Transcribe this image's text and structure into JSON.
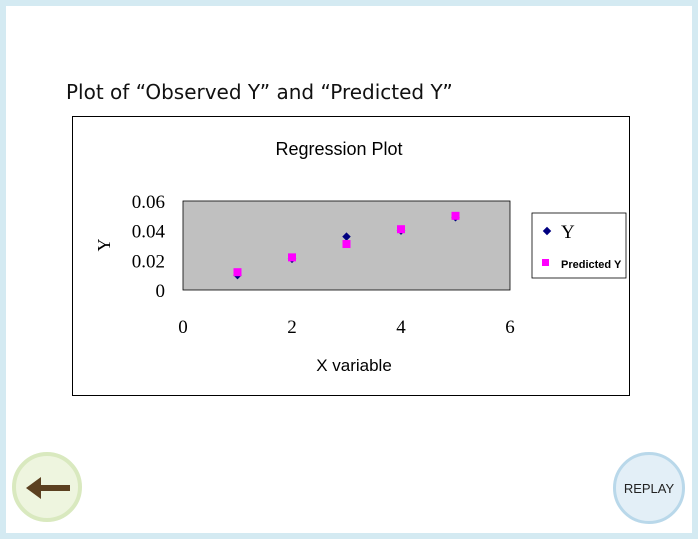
{
  "heading": "Plot of “Observed Y” and “Predicted Y”",
  "buttons": {
    "back_icon": "left-arrow-icon",
    "replay_label": "REPLAY"
  },
  "colors": {
    "plot_area": "#c0c0c0",
    "observed": "#000080",
    "predicted": "#ff00ff",
    "page_border": "#d4eaf2"
  },
  "chart_data": {
    "type": "scatter",
    "title": "Regression Plot",
    "xlabel": "X variable",
    "ylabel": "Y",
    "xlim": [
      0,
      6
    ],
    "ylim": [
      0,
      0.06
    ],
    "x_ticks": [
      "0",
      "2",
      "4",
      "6"
    ],
    "y_ticks": [
      "0",
      "0.02",
      "0.04",
      "0.06"
    ],
    "grid": false,
    "legend_position": "right",
    "series": [
      {
        "name": "Y",
        "marker": "diamond",
        "x": [
          1,
          2,
          3,
          4,
          5
        ],
        "y": [
          0.01,
          0.021,
          0.036,
          0.04,
          0.049
        ]
      },
      {
        "name": "Predicted Y",
        "marker": "square",
        "x": [
          1,
          2,
          3,
          4,
          5
        ],
        "y": [
          0.012,
          0.022,
          0.031,
          0.041,
          0.05
        ]
      }
    ]
  }
}
